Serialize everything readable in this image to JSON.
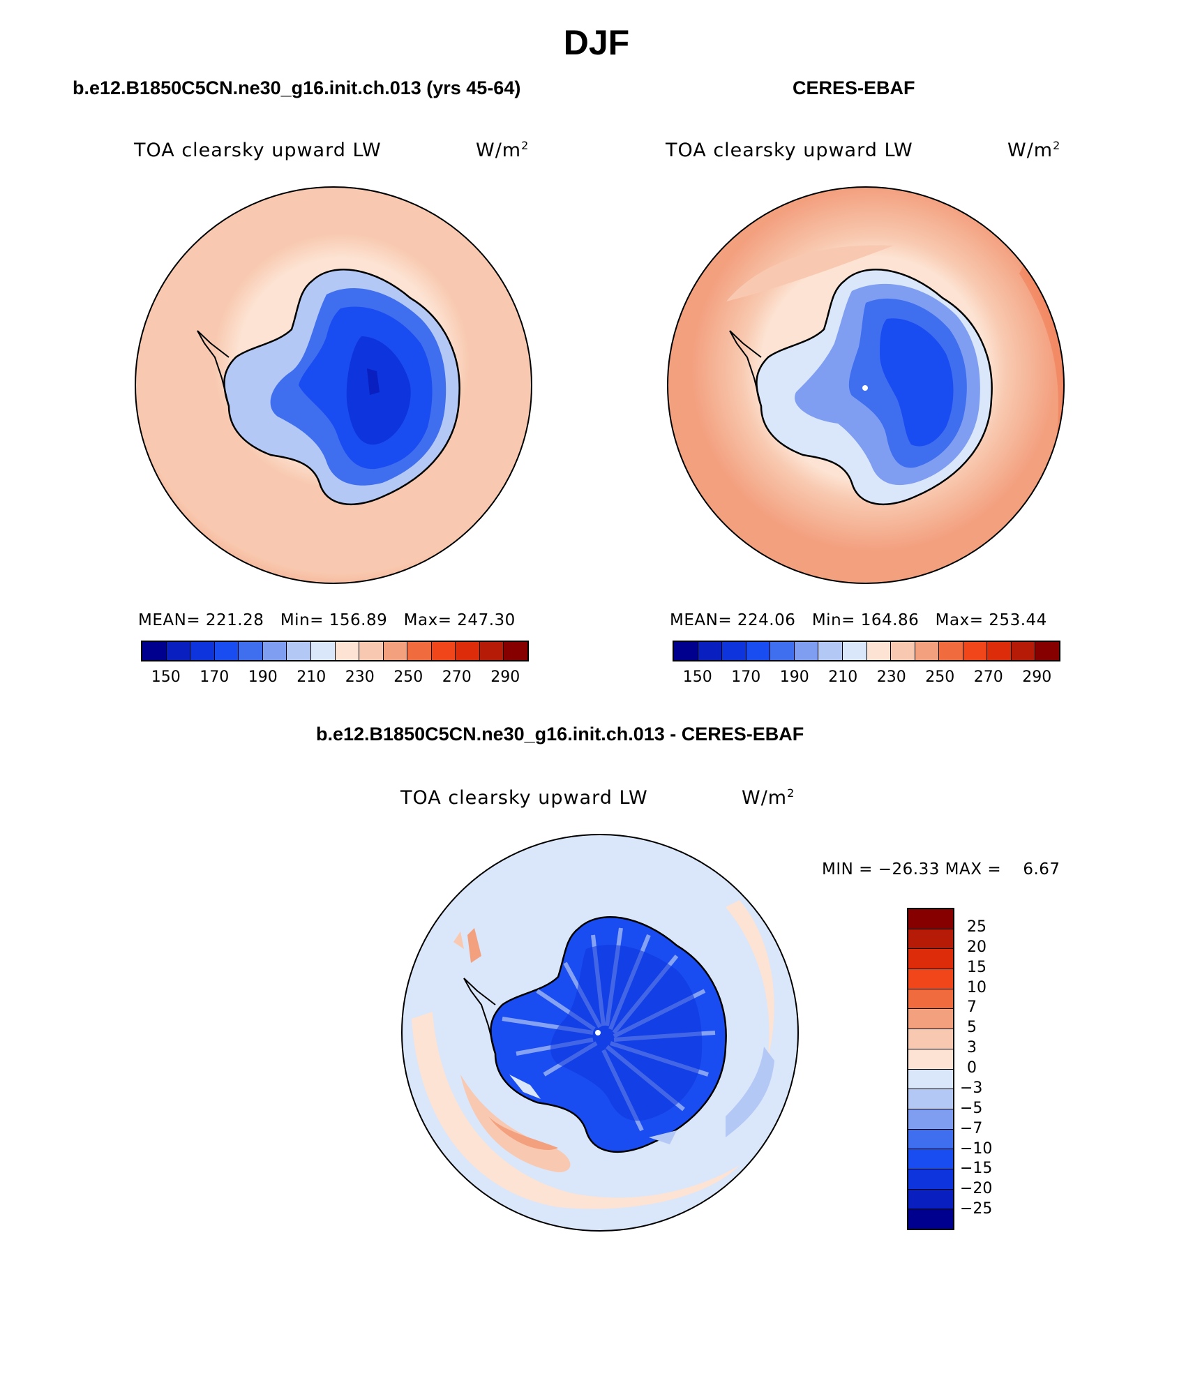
{
  "title": "DJF",
  "colors": {
    "abs_scale": [
      "#00008f",
      "#0a1fbf",
      "#0d34dd",
      "#1a4df1",
      "#3f6eef",
      "#7f9ef2",
      "#b4c8f5",
      "#dae6fa",
      "#fde3d3",
      "#f8c9b0",
      "#f3a07f",
      "#f06c3f",
      "#f1451a",
      "#dd2c0a",
      "#b51b06",
      "#860000"
    ],
    "diff_scale": [
      "#00008f",
      "#0a1fbf",
      "#0d34dd",
      "#1a4df1",
      "#3f6eef",
      "#7f9ef2",
      "#b4c8f5",
      "#dae6fa",
      "#fde3d3",
      "#f8c9b0",
      "#f3a07f",
      "#f06c3f",
      "#f1451a",
      "#dd2c0a",
      "#b51b06",
      "#860000"
    ],
    "continent_core": "#0d34dd",
    "continent_rim": "#7f9ef2"
  },
  "panels": {
    "model": {
      "case_title": "b.e12.B1850C5CN.ne30_g16.init.ch.013 (yrs 45-64)",
      "variable": "TOA clearsky upward LW",
      "units_base": "W/m",
      "units_exp": "2",
      "stats": {
        "mean_label": "MEAN=",
        "mean": "221.28",
        "min_label": "Min=",
        "min": "156.89",
        "max_label": "Max=",
        "max": "247.30"
      },
      "colorbar_labels": [
        "150",
        "170",
        "190",
        "210",
        "230",
        "250",
        "270",
        "290"
      ]
    },
    "obs": {
      "case_title": "CERES-EBAF",
      "variable": "TOA clearsky upward LW",
      "units_base": "W/m",
      "units_exp": "2",
      "stats": {
        "mean_label": "MEAN=",
        "mean": "224.06",
        "min_label": "Min=",
        "min": "164.86",
        "max_label": "Max=",
        "max": "253.44"
      },
      "colorbar_labels": [
        "150",
        "170",
        "190",
        "210",
        "230",
        "250",
        "270",
        "290"
      ]
    },
    "diff": {
      "case_title": "b.e12.B1850C5CN.ne30_g16.init.ch.013 - CERES-EBAF",
      "variable": "TOA clearsky upward LW",
      "units_base": "W/m",
      "units_exp": "2",
      "minmax": {
        "min_label": "MIN =",
        "min": "−26.33",
        "max_label": "MAX =",
        "max": "6.67"
      },
      "colorbar_labels": [
        "25",
        "20",
        "15",
        "10",
        "7",
        "5",
        "3",
        "0",
        "−3",
        "−5",
        "−7",
        "−10",
        "−15",
        "−20",
        "−25"
      ]
    }
  }
}
